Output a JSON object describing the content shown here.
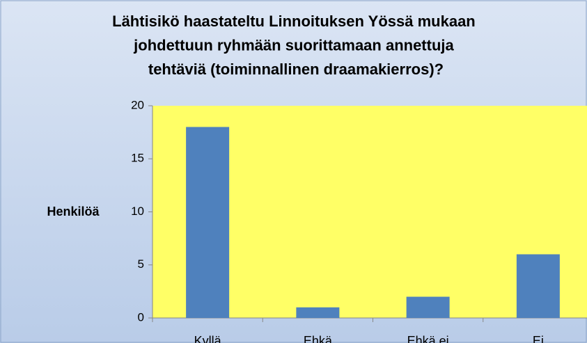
{
  "chart_data": {
    "type": "bar",
    "title": "Lähtisikö haastateltu Linnoituksen Yössä mukaan johdettuun ryhmään suorittamaan annettuja tehtäviä (toiminnallinen draamakierros)?",
    "y_label": "Henkilöä",
    "categories": [
      "Kyllä",
      "Ehkä",
      "Ehkä ei",
      "Ei"
    ],
    "values": [
      18,
      1,
      2,
      6
    ],
    "color": "#4f81bd",
    "plot_background": "#ffff66",
    "ylim": [
      0,
      20
    ],
    "yticks": [
      0,
      5,
      10,
      15,
      20
    ],
    "grid": false
  }
}
